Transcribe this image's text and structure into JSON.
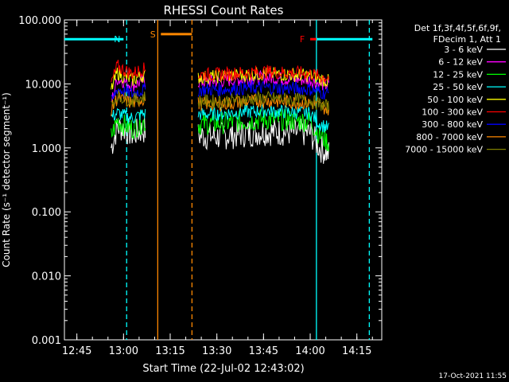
{
  "chart_data": {
    "type": "line",
    "title": "RHESSI Count Rates",
    "xlabel": "Start Time (22-Jul-02 12:43:02)",
    "ylabel": "Count Rate (s⁻¹ detector segment⁻¹)",
    "yscale": "log",
    "ylim": [
      0.001,
      100
    ],
    "xlim": [
      "12:41",
      "14:23"
    ],
    "y_ticks": [
      "0.001",
      "0.010",
      "0.100",
      "1.000",
      "10.000",
      "100.000"
    ],
    "x_ticks": [
      "12:45",
      "13:00",
      "13:15",
      "13:30",
      "13:45",
      "14:00",
      "14:15"
    ],
    "footer_date": "17-Oct-2021 11:55",
    "legend_header": [
      "Det 1f,3f,4f,5f,6f,9f,",
      "FDecim 1, Att 1"
    ],
    "legend_position": "right",
    "series": [
      {
        "name": "3 - 6 keV",
        "color": "#ffffff",
        "x": [
          "12:56",
          "12:58",
          "13:00",
          "13:03",
          "13:06",
          "13:20",
          "13:30",
          "13:45",
          "14:00",
          "14:03",
          "14:06"
        ],
        "y": [
          1.0,
          2.1,
          2.0,
          1.6,
          1.9,
          1.6,
          1.5,
          1.8,
          1.7,
          1.0,
          0.8
        ]
      },
      {
        "name": "6 - 12 keV",
        "color": "#ff00ff",
        "x": [
          "12:56",
          "12:58",
          "13:00",
          "13:03",
          "13:06",
          "13:20",
          "13:30",
          "13:45",
          "14:00",
          "14:03",
          "14:06"
        ],
        "y": [
          5.0,
          12.0,
          11.0,
          9.5,
          11.0,
          10.5,
          11.0,
          12.5,
          11.5,
          10.0,
          9.5
        ]
      },
      {
        "name": "12 - 25 keV",
        "color": "#00ff00",
        "x": [
          "12:56",
          "12:58",
          "13:00",
          "13:03",
          "13:06",
          "13:20",
          "13:30",
          "13:45",
          "14:00",
          "14:03",
          "14:06"
        ],
        "y": [
          1.5,
          2.7,
          2.3,
          2.0,
          2.5,
          2.3,
          2.4,
          2.8,
          2.6,
          1.6,
          1.2
        ]
      },
      {
        "name": "25 - 50 keV",
        "color": "#00ffff",
        "x": [
          "12:56",
          "12:58",
          "13:00",
          "13:03",
          "13:06",
          "13:20",
          "13:30",
          "13:45",
          "14:00",
          "14:03",
          "14:06"
        ],
        "y": [
          3.0,
          3.5,
          3.2,
          2.9,
          3.4,
          3.3,
          3.4,
          3.8,
          3.5,
          2.4,
          2.0
        ]
      },
      {
        "name": "50 - 100 keV",
        "color": "#ffff00",
        "x": [
          "12:56",
          "12:58",
          "13:00",
          "13:03",
          "13:06",
          "13:20",
          "13:30",
          "13:45",
          "14:00",
          "14:03",
          "14:06"
        ],
        "y": [
          8.0,
          15.0,
          13.0,
          11.5,
          13.5,
          12.5,
          13.0,
          14.5,
          13.5,
          12.0,
          11.0
        ]
      },
      {
        "name": "100 - 300 keV",
        "color": "#ff0000",
        "x": [
          "12:56",
          "12:58",
          "13:00",
          "13:03",
          "13:06",
          "13:20",
          "13:30",
          "13:45",
          "14:00",
          "14:03",
          "14:06"
        ],
        "y": [
          10.0,
          19.0,
          16.5,
          14.5,
          17.0,
          14.0,
          14.0,
          15.5,
          14.5,
          13.0,
          12.5
        ]
      },
      {
        "name": "300 - 800 keV",
        "color": "#0000ff",
        "x": [
          "12:56",
          "12:58",
          "13:00",
          "13:03",
          "13:06",
          "13:20",
          "13:30",
          "13:45",
          "14:00",
          "14:03",
          "14:06"
        ],
        "y": [
          5.0,
          8.5,
          7.5,
          7.0,
          8.0,
          8.0,
          8.2,
          8.8,
          8.3,
          7.5,
          7.0
        ]
      },
      {
        "name": "800 - 7000 keV",
        "color": "#ff8800",
        "x": [
          "12:56",
          "12:58",
          "13:00",
          "13:03",
          "13:06",
          "13:20",
          "13:30",
          "13:45",
          "14:00",
          "14:03",
          "14:06"
        ],
        "y": [
          4.0,
          6.0,
          5.5,
          5.0,
          5.8,
          5.0,
          4.8,
          5.5,
          5.0,
          4.5,
          4.0
        ]
      },
      {
        "name": "7000 - 15000 keV",
        "color": "#808000",
        "x": [
          "12:56",
          "12:58",
          "13:00",
          "13:03",
          "13:06",
          "13:20",
          "13:30",
          "13:45",
          "14:00",
          "14:03",
          "14:06"
        ],
        "y": [
          4.5,
          6.5,
          6.0,
          5.5,
          6.2,
          5.5,
          5.3,
          6.0,
          5.5,
          4.8,
          4.3
        ]
      }
    ],
    "annotations": [
      {
        "label": "N",
        "color": "#00ffff",
        "segments": [
          [
            "12:41",
            "13:00"
          ],
          [
            "14:02",
            "14:20"
          ]
        ],
        "y": 50
      },
      {
        "label": "S",
        "color": "#ff8800",
        "segments": [
          [
            "13:12",
            "13:22"
          ]
        ],
        "y": 60
      },
      {
        "label": "F",
        "color": "#ff0000",
        "segments": [
          [
            "14:00",
            "14:02"
          ]
        ],
        "y": 50
      }
    ],
    "vlines": [
      {
        "x": "13:01",
        "color": "#00ffff",
        "style": "dashed"
      },
      {
        "x": "13:11",
        "color": "#ff8800",
        "style": "solid"
      },
      {
        "x": "13:22",
        "color": "#ff8800",
        "style": "dashed"
      },
      {
        "x": "14:02",
        "color": "#00ffff",
        "style": "solid"
      },
      {
        "x": "14:19",
        "color": "#00ffff",
        "style": "dashed"
      }
    ]
  }
}
